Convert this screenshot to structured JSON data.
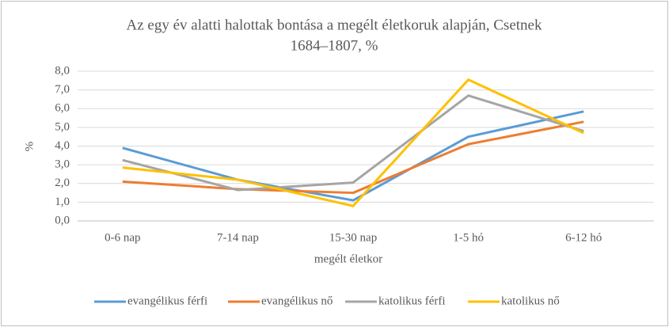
{
  "chart_data": {
    "type": "line",
    "title": [
      "Az egy év alatti halottak bontása a megélt életkoruk alapján, Csetnek",
      "1684–1807, %"
    ],
    "x_label": "megélt életkor",
    "y_label": "%",
    "categories": [
      "0-6 nap",
      "7-14 nap",
      "15-30 nap",
      "1-5 hó",
      "6-12 hó"
    ],
    "series": [
      {
        "name": "evangélikus férfi",
        "color": "#5b9bd5",
        "values": [
          3.9,
          2.2,
          1.1,
          4.5,
          5.85
        ]
      },
      {
        "name": "evangélikus nő",
        "color": "#ed7d31",
        "values": [
          2.1,
          1.7,
          1.5,
          4.1,
          5.3
        ]
      },
      {
        "name": "katolikus férfi",
        "color": "#a5a5a5",
        "values": [
          3.25,
          1.65,
          2.05,
          6.7,
          4.8
        ]
      },
      {
        "name": "katolikus nő",
        "color": "#ffc000",
        "values": [
          2.85,
          2.2,
          0.8,
          7.55,
          4.7
        ]
      }
    ],
    "ylim": [
      0,
      8
    ],
    "yticks": [
      {
        "value": 0,
        "label": "0,0"
      },
      {
        "value": 1,
        "label": "1,0"
      },
      {
        "value": 2,
        "label": "2,0"
      },
      {
        "value": 3,
        "label": "3,0"
      },
      {
        "value": 4,
        "label": "4,0"
      },
      {
        "value": 5,
        "label": "5,0"
      },
      {
        "value": 6,
        "label": "6,0"
      },
      {
        "value": 7,
        "label": "7,0"
      },
      {
        "value": 8,
        "label": "8,0"
      }
    ],
    "grid": true,
    "legend": "bottom"
  }
}
